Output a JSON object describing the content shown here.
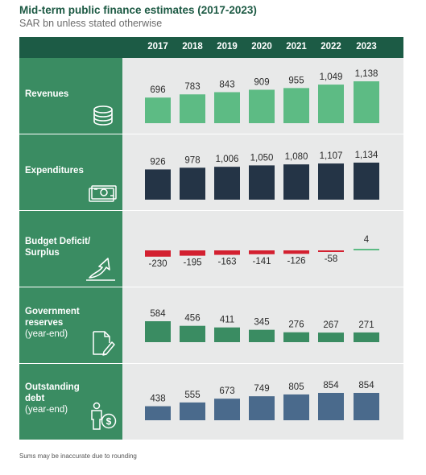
{
  "title": "Mid-term public finance estimates (2017-2023)",
  "subtitle": "SAR bn unless stated otherwise",
  "footnote": "Sums may be inaccurate due to rounding",
  "colors": {
    "header": "#1c5b45",
    "label_column": "#3a8c62",
    "revenues": "#5dbb84",
    "expenditures": "#243446",
    "deficit": "#d32030",
    "surplus": "#5dbb84",
    "reserves": "#3a8c62",
    "debt": "#4a6a8c"
  },
  "rows": [
    {
      "title": "Revenues",
      "subtitle": "",
      "icon": "coins-icon"
    },
    {
      "title": "Expenditures",
      "subtitle": "",
      "icon": "banknotes-icon"
    },
    {
      "title": "Budget Deficit/ Surplus",
      "subtitle": "",
      "icon": "rising-arrow-icon"
    },
    {
      "title": "Government reserves",
      "subtitle": "(year-end)",
      "icon": "document-pen-icon"
    },
    {
      "title": "Outstanding debt",
      "subtitle": "(year-end)",
      "icon": "person-dollar-icon"
    }
  ],
  "chart_data": {
    "type": "bar",
    "categories": [
      "2017",
      "2018",
      "2019",
      "2020",
      "2021",
      "2022",
      "2023"
    ],
    "series": [
      {
        "name": "Revenues",
        "values": [
          696,
          783,
          843,
          909,
          955,
          1049,
          1138
        ],
        "labels": [
          "696",
          "783",
          "843",
          "909",
          "955",
          "1,049",
          "1,138"
        ]
      },
      {
        "name": "Expenditures",
        "values": [
          926,
          978,
          1006,
          1050,
          1080,
          1107,
          1134
        ],
        "labels": [
          "926",
          "978",
          "1,006",
          "1,050",
          "1,080",
          "1,107",
          "1,134"
        ]
      },
      {
        "name": "Budget Deficit/ Surplus",
        "values": [
          -230,
          -195,
          -163,
          -141,
          -126,
          -58,
          4
        ],
        "labels": [
          "-230",
          "-195",
          "-163",
          "-141",
          "-126",
          "-58",
          "4"
        ]
      },
      {
        "name": "Government reserves",
        "values": [
          584,
          456,
          411,
          345,
          276,
          267,
          271
        ],
        "labels": [
          "584",
          "456",
          "411",
          "345",
          "276",
          "267",
          "271"
        ]
      },
      {
        "name": "Outstanding debt",
        "values": [
          438,
          555,
          673,
          749,
          805,
          854,
          854
        ],
        "labels": [
          "438",
          "555",
          "673",
          "749",
          "805",
          "854",
          "854"
        ]
      }
    ]
  }
}
